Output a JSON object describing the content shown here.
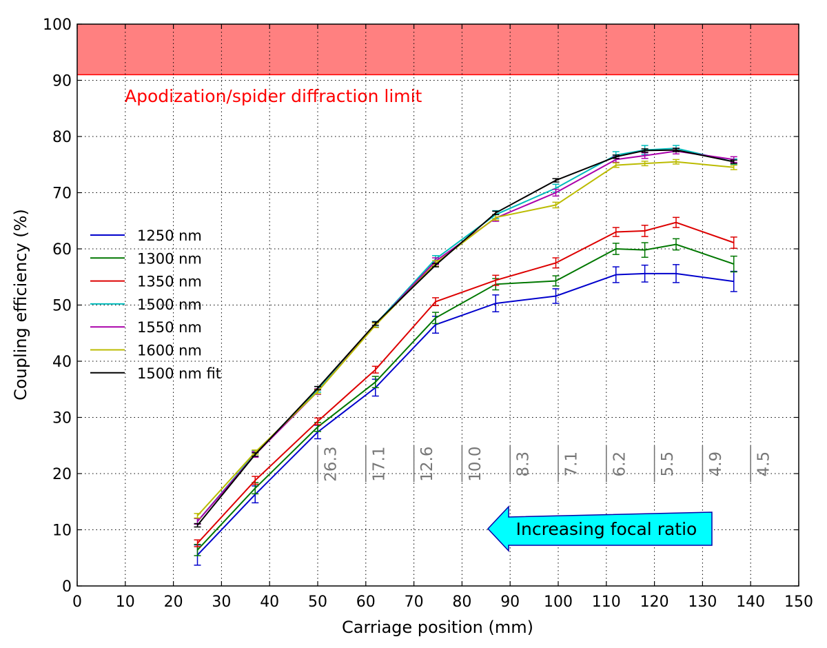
{
  "chart_data": {
    "type": "line",
    "title": "",
    "xlabel": "Carriage position (mm)",
    "ylabel": "Coupling efficiency (%)",
    "xlim": [
      0,
      150
    ],
    "ylim": [
      0,
      100
    ],
    "xticks": [
      "0",
      "10",
      "20",
      "30",
      "40",
      "50",
      "60",
      "70",
      "80",
      "90",
      "100",
      "110",
      "120",
      "130",
      "140",
      "150"
    ],
    "yticks": [
      "0",
      "10",
      "20",
      "30",
      "40",
      "50",
      "60",
      "70",
      "80",
      "90",
      "100"
    ],
    "grid": true,
    "legend_position": "center-left",
    "shaded_band": {
      "from": 91,
      "to": 100,
      "color": "#ff8080",
      "edge_color": "#ff0000",
      "label": "Apodization/spider diffraction limit"
    },
    "focal_ratio_markers": {
      "positions": [
        50,
        60,
        70,
        80,
        90,
        100,
        110,
        120,
        130,
        140
      ],
      "labels": [
        "26.3",
        "17.1",
        "12.6",
        "10.0",
        "8.3",
        "7.1",
        "6.2",
        "5.5",
        "4.9",
        "4.5"
      ]
    },
    "annotation_arrow": {
      "text": "Increasing focal ratio",
      "direction": "left",
      "fill": "#00ffff"
    },
    "series": [
      {
        "name": "1250 nm",
        "color": "#0000cc",
        "x": [
          25,
          37,
          50,
          62,
          74.5,
          87,
          99.5,
          112,
          118,
          124.5,
          136.5
        ],
        "y": [
          5.5,
          16.3,
          27.4,
          35.3,
          46.5,
          50.3,
          51.6,
          55.4,
          55.6,
          55.6,
          54.2
        ],
        "err": [
          1.8,
          1.5,
          1.2,
          1.5,
          1.5,
          1.5,
          1.3,
          1.4,
          1.5,
          1.6,
          1.8
        ]
      },
      {
        "name": "1300 nm",
        "color": "#007700",
        "x": [
          25,
          37,
          50,
          62,
          74.5,
          87,
          99.5,
          112,
          118,
          124.5,
          136.5
        ],
        "y": [
          6.4,
          17.4,
          28.3,
          36.3,
          47.7,
          53.7,
          54.3,
          60.0,
          59.8,
          60.8,
          57.3
        ],
        "err": [
          1.0,
          1.0,
          0.8,
          1.0,
          1.0,
          1.0,
          0.9,
          1.0,
          1.3,
          1.0,
          1.4
        ]
      },
      {
        "name": "1350 nm",
        "color": "#dd0000",
        "x": [
          25,
          37,
          50,
          62,
          74.5,
          87,
          99.5,
          112,
          118,
          124.5,
          136.5
        ],
        "y": [
          7.6,
          18.8,
          29.3,
          38.5,
          50.6,
          54.4,
          57.5,
          63.0,
          63.2,
          64.7,
          61.1
        ],
        "err": [
          0.6,
          0.7,
          0.6,
          0.6,
          0.7,
          0.9,
          0.9,
          0.8,
          1.0,
          0.9,
          1.0
        ]
      },
      {
        "name": "1500 nm",
        "color": "#00bbbb",
        "x": [
          25,
          37,
          50,
          62,
          74.5,
          87,
          99.5,
          112,
          118,
          124.5,
          136.5
        ],
        "y": [
          11.5,
          23.6,
          35.0,
          46.6,
          58.2,
          66.1,
          70.8,
          76.7,
          77.6,
          77.9,
          75.5
        ],
        "err": [
          0.5,
          0.5,
          0.5,
          0.5,
          0.6,
          0.7,
          0.7,
          0.6,
          0.8,
          0.5,
          0.5
        ]
      },
      {
        "name": "1550 nm",
        "color": "#aa00aa",
        "x": [
          25,
          37,
          50,
          62,
          74.5,
          87,
          99.5,
          112,
          118,
          124.5,
          136.5
        ],
        "y": [
          11.5,
          23.4,
          34.6,
          46.5,
          57.8,
          65.5,
          70.0,
          75.9,
          76.6,
          77.4,
          75.9
        ],
        "err": [
          0.5,
          0.5,
          0.5,
          0.5,
          0.6,
          0.6,
          0.6,
          0.5,
          0.5,
          0.5,
          0.5
        ]
      },
      {
        "name": "1600 nm",
        "color": "#bbbb00",
        "x": [
          25,
          37,
          50,
          62,
          74.5,
          87,
          99.5,
          112,
          118,
          124.5,
          136.5
        ],
        "y": [
          12.5,
          23.8,
          34.6,
          46.4,
          57.4,
          65.6,
          67.8,
          74.9,
          75.2,
          75.5,
          74.5
        ],
        "err": [
          0.4,
          0.4,
          0.4,
          0.4,
          0.5,
          0.5,
          0.5,
          0.4,
          0.4,
          0.4,
          0.4
        ]
      },
      {
        "name": "1500 nm fit",
        "color": "#000000",
        "x": [
          25,
          37,
          50,
          62,
          74.5,
          87,
          99.5,
          112,
          118,
          124.5,
          136.5
        ],
        "y": [
          10.8,
          23.4,
          35.2,
          46.7,
          57.1,
          66.4,
          72.2,
          76.4,
          77.5,
          77.6,
          75.5
        ],
        "err": [
          0.3,
          0.3,
          0.3,
          0.3,
          0.3,
          0.3,
          0.3,
          0.3,
          0.3,
          0.3,
          0.3
        ]
      }
    ]
  }
}
